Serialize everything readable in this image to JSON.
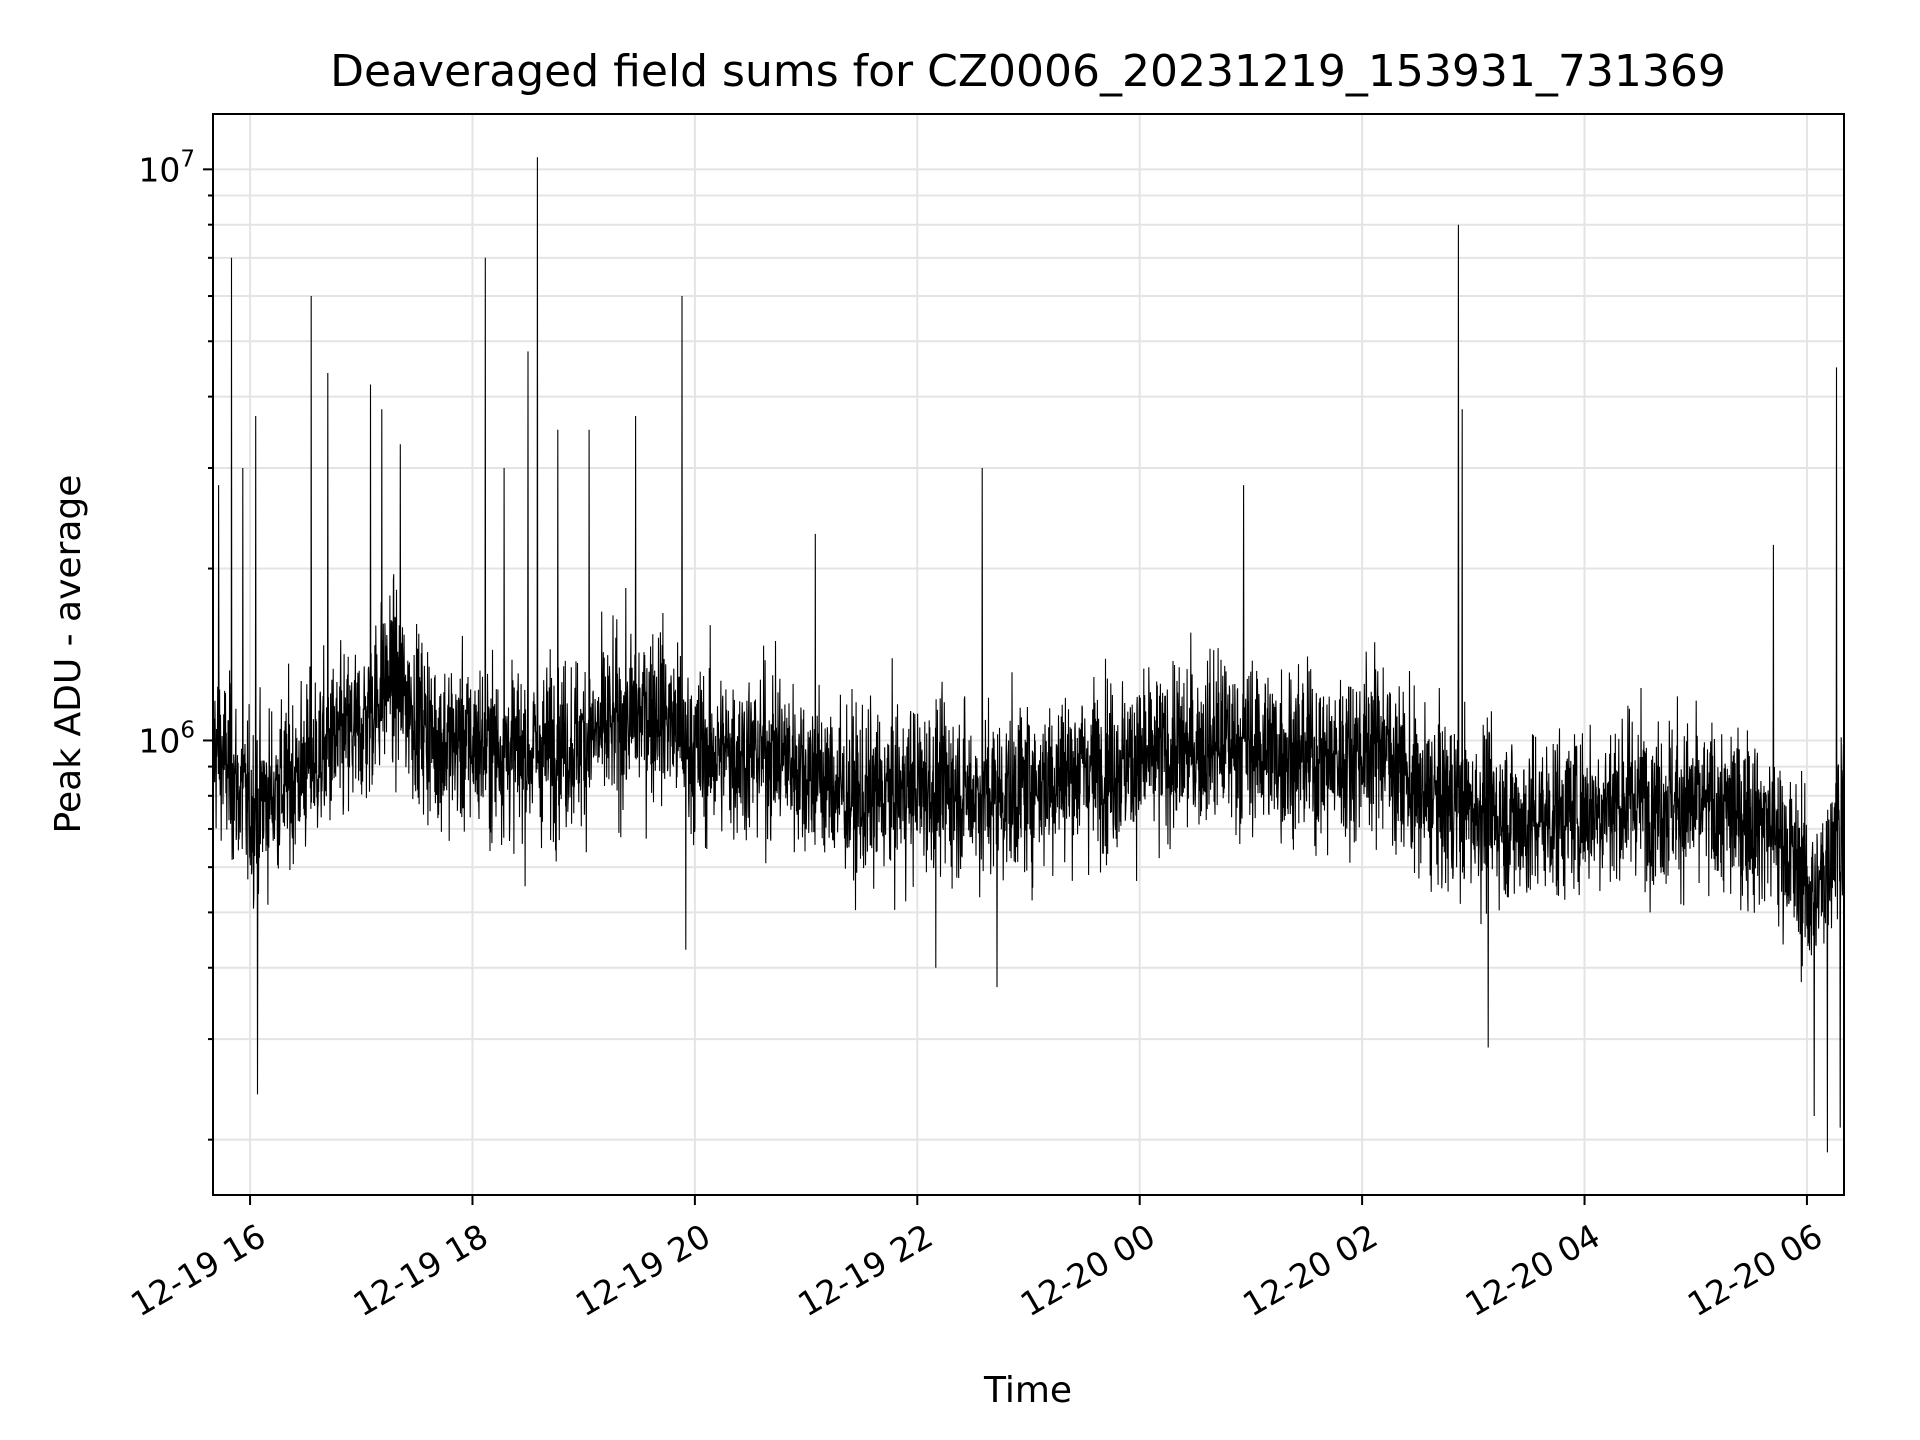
{
  "chart_data": {
    "type": "line",
    "title": "Deaveraged field sums for CZ0006_20231219_153931_731369",
    "xlabel": "Time",
    "ylabel": "Peak ADU - average",
    "yscale": "log",
    "ylim": [
      160000,
      12500000
    ],
    "xlim": [
      "2023-12-19 15:40",
      "2023-12-20 06:20"
    ],
    "grid": true,
    "x_ticks": [
      {
        "value": "2023-12-19 16:00",
        "label": "12-19 16"
      },
      {
        "value": "2023-12-19 18:00",
        "label": "12-19 18"
      },
      {
        "value": "2023-12-19 20:00",
        "label": "12-19 20"
      },
      {
        "value": "2023-12-19 22:00",
        "label": "12-19 22"
      },
      {
        "value": "2023-12-20 00:00",
        "label": "12-20 00"
      },
      {
        "value": "2023-12-20 02:00",
        "label": "12-20 02"
      },
      {
        "value": "2023-12-20 04:00",
        "label": "12-20 04"
      },
      {
        "value": "2023-12-20 06:00",
        "label": "12-20 06"
      }
    ],
    "y_ticks": [
      {
        "value": 1000000,
        "base": "10",
        "exp": "6"
      },
      {
        "value": 10000000,
        "base": "10",
        "exp": "7"
      }
    ],
    "series": [
      {
        "color": "#000000",
        "profile": [
          {
            "x": "2023-12-19 15:40",
            "y": 1000000
          },
          {
            "x": "2023-12-19 16:00",
            "y": 750000
          },
          {
            "x": "2023-12-19 16:20",
            "y": 850000
          },
          {
            "x": "2023-12-19 16:40",
            "y": 950000
          },
          {
            "x": "2023-12-19 17:00",
            "y": 1050000
          },
          {
            "x": "2023-12-19 17:15",
            "y": 1300000
          },
          {
            "x": "2023-12-19 17:40",
            "y": 1000000
          },
          {
            "x": "2023-12-19 18:30",
            "y": 950000
          },
          {
            "x": "2023-12-19 19:00",
            "y": 1000000
          },
          {
            "x": "2023-12-19 19:40",
            "y": 1150000
          },
          {
            "x": "2023-12-19 20:00",
            "y": 950000
          },
          {
            "x": "2023-12-19 20:45",
            "y": 950000
          },
          {
            "x": "2023-12-19 21:30",
            "y": 780000
          },
          {
            "x": "2023-12-19 22:00",
            "y": 830000
          },
          {
            "x": "2023-12-19 22:45",
            "y": 800000
          },
          {
            "x": "2023-12-19 23:30",
            "y": 900000
          },
          {
            "x": "2023-12-20 00:00",
            "y": 920000
          },
          {
            "x": "2023-12-20 00:45",
            "y": 1000000
          },
          {
            "x": "2023-12-20 01:45",
            "y": 920000
          },
          {
            "x": "2023-12-20 02:10",
            "y": 1000000
          },
          {
            "x": "2023-12-20 02:30",
            "y": 800000
          },
          {
            "x": "2023-12-20 03:30",
            "y": 720000
          },
          {
            "x": "2023-12-20 04:30",
            "y": 800000
          },
          {
            "x": "2023-12-20 05:40",
            "y": 720000
          },
          {
            "x": "2023-12-20 06:05",
            "y": 520000
          },
          {
            "x": "2023-12-20 06:20",
            "y": 800000
          }
        ],
        "spikes": [
          {
            "x": "2023-12-19 15:50",
            "y": 7000000
          },
          {
            "x": "2023-12-19 15:43",
            "y": 2800000
          },
          {
            "x": "2023-12-19 15:56",
            "y": 3000000
          },
          {
            "x": "2023-12-19 16:03",
            "y": 3700000
          },
          {
            "x": "2023-12-19 16:04",
            "y": 240000
          },
          {
            "x": "2023-12-19 16:33",
            "y": 6000000
          },
          {
            "x": "2023-12-19 16:42",
            "y": 4400000
          },
          {
            "x": "2023-12-19 17:05",
            "y": 4200000
          },
          {
            "x": "2023-12-19 17:11",
            "y": 3800000
          },
          {
            "x": "2023-12-19 17:21",
            "y": 3300000
          },
          {
            "x": "2023-12-19 18:07",
            "y": 7000000
          },
          {
            "x": "2023-12-19 18:17",
            "y": 3000000
          },
          {
            "x": "2023-12-19 18:30",
            "y": 4800000
          },
          {
            "x": "2023-12-19 18:35",
            "y": 10500000
          },
          {
            "x": "2023-12-19 18:46",
            "y": 3500000
          },
          {
            "x": "2023-12-19 19:03",
            "y": 3500000
          },
          {
            "x": "2023-12-19 19:28",
            "y": 3700000
          },
          {
            "x": "2023-12-19 19:53",
            "y": 6000000
          },
          {
            "x": "2023-12-19 19:55",
            "y": 430000
          },
          {
            "x": "2023-12-19 21:05",
            "y": 2300000
          },
          {
            "x": "2023-12-19 22:10",
            "y": 400000
          },
          {
            "x": "2023-12-19 22:35",
            "y": 3000000
          },
          {
            "x": "2023-12-19 22:43",
            "y": 370000
          },
          {
            "x": "2023-12-20 00:56",
            "y": 2800000
          },
          {
            "x": "2023-12-20 02:52",
            "y": 8000000
          },
          {
            "x": "2023-12-20 02:54",
            "y": 3800000
          },
          {
            "x": "2023-12-20 03:08",
            "y": 290000
          },
          {
            "x": "2023-12-20 05:42",
            "y": 2200000
          },
          {
            "x": "2023-12-20 06:04",
            "y": 220000
          },
          {
            "x": "2023-12-20 06:11",
            "y": 190000
          },
          {
            "x": "2023-12-20 06:16",
            "y": 4500000
          },
          {
            "x": "2023-12-20 06:18",
            "y": 210000
          }
        ]
      }
    ]
  }
}
